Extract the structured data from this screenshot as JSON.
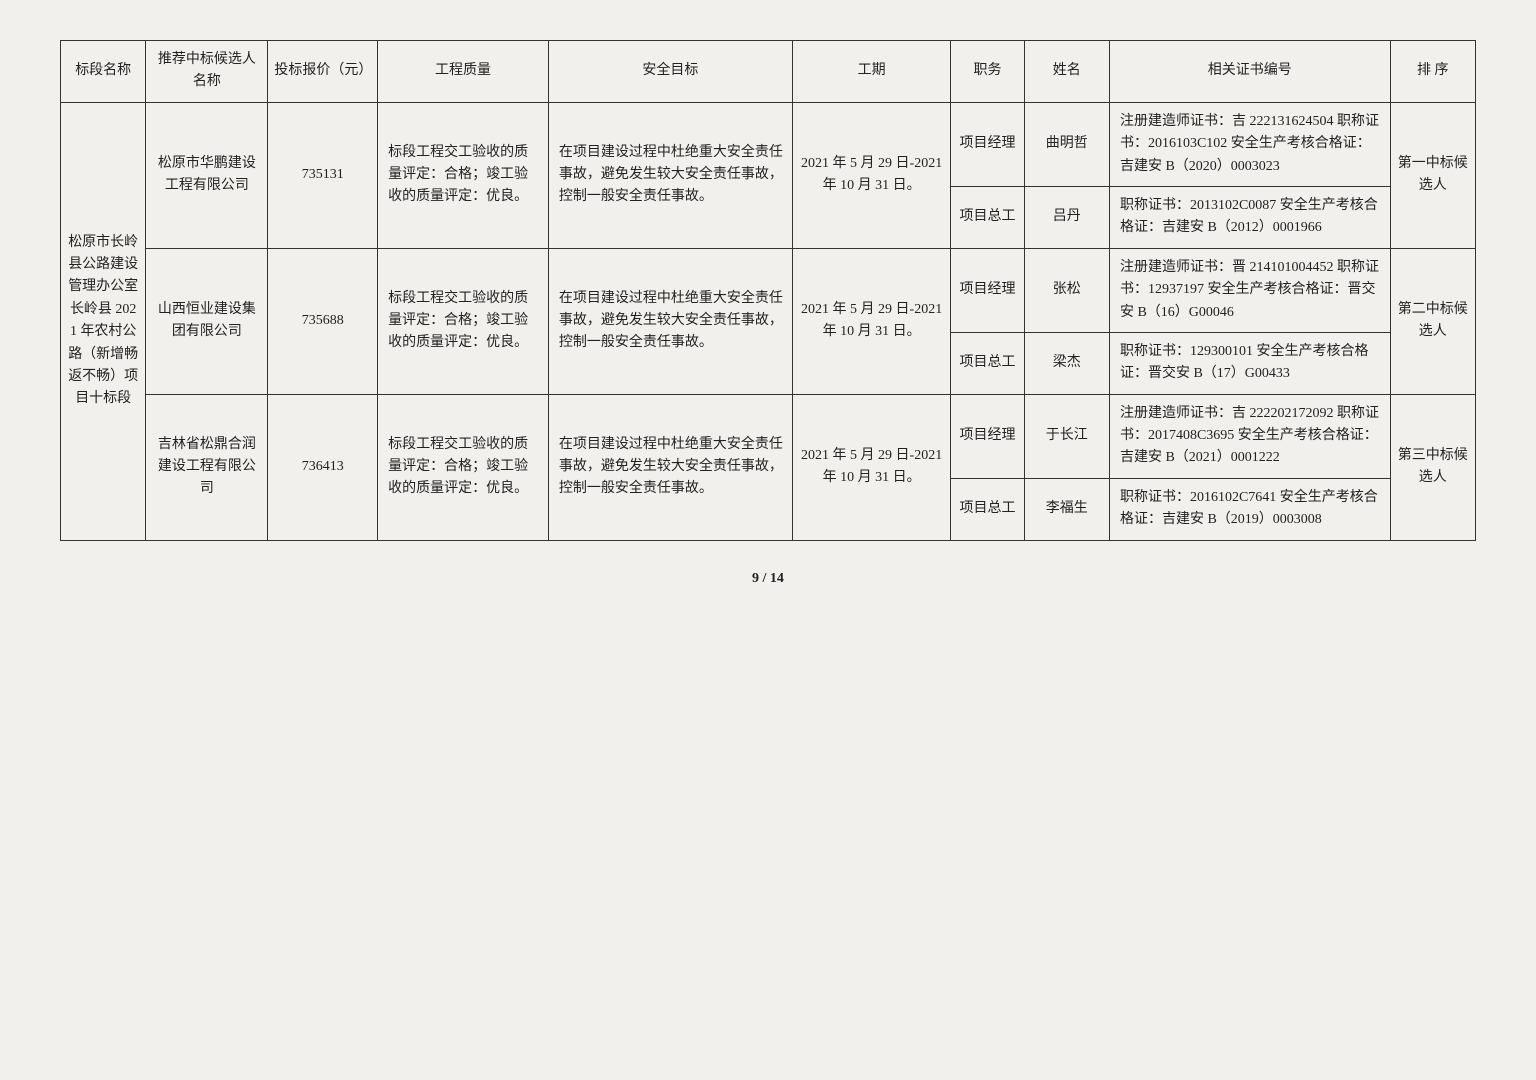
{
  "headers": {
    "section": "标段名称",
    "candidate": "推荐中标候选人名称",
    "bid": "投标报价（元）",
    "quality": "工程质量",
    "safety": "安全目标",
    "period": "工期",
    "role": "职务",
    "name": "姓名",
    "cert": "相关证书编号",
    "rank": "排 序"
  },
  "section_name": "松原市长岭县公路建设管理办公室长岭县 2021 年农村公路（新增畅返不畅）项目十标段",
  "quality_text": "标段工程交工验收的质量评定：合格；竣工验收的质量评定：优良。",
  "safety_text": "在项目建设过程中杜绝重大安全责任事故，避免发生较大安全责任事故，控制一般安全责任事故。",
  "period_text": "2021 年 5 月 29 日-2021 年 10 月 31 日。",
  "candidates": [
    {
      "company": "松原市华鹏建设工程有限公司",
      "bid": "735131",
      "rank": "第一中标候选人",
      "people": [
        {
          "role": "项目经理",
          "name": "曲明哲",
          "cert": "注册建造师证书：吉 222131624504\n职称证书：2016103C102\n安全生产考核合格证：吉建安 B（2020）0003023"
        },
        {
          "role": "项目总工",
          "name": "吕丹",
          "cert": "职称证书：2013102C0087\n安全生产考核合格证：吉建安 B（2012）0001966"
        }
      ]
    },
    {
      "company": "山西恒业建设集团有限公司",
      "bid": "735688",
      "rank": "第二中标候选人",
      "people": [
        {
          "role": "项目经理",
          "name": "张松",
          "cert": "注册建造师证书：晋 214101004452\n职称证书：12937197\n安全生产考核合格证：晋交安 B（16）G00046"
        },
        {
          "role": "项目总工",
          "name": "梁杰",
          "cert": "职称证书：129300101\n安全生产考核合格证：晋交安 B（17）G00433"
        }
      ]
    },
    {
      "company": "吉林省松鼎合润建设工程有限公司",
      "bid": "736413",
      "rank": "第三中标候选人",
      "people": [
        {
          "role": "项目经理",
          "name": "于长江",
          "cert": "注册建造师证书：吉 222202172092\n职称证书：2017408C3695\n安全生产考核合格证：吉建安 B（2021）0001222"
        },
        {
          "role": "项目总工",
          "name": "李福生",
          "cert": "职称证书：2016102C7641\n安全生产考核合格证：吉建安 B（2019）0003008"
        }
      ]
    }
  ],
  "page": "9 / 14"
}
